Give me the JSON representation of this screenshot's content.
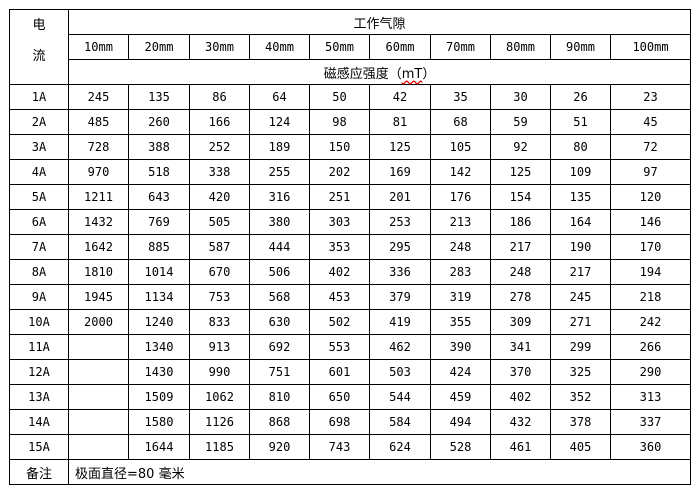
{
  "header": {
    "current_label_line1": "电",
    "current_label_line2": "流",
    "gap_title": "工作气隙",
    "gaps": [
      "10mm",
      "20mm",
      "30mm",
      "40mm",
      "50mm",
      "60mm",
      "70mm",
      "80mm",
      "90mm",
      "100mm"
    ],
    "field_title": "磁感应强度（",
    "field_unit": "mT",
    "field_close": "）"
  },
  "rows": [
    {
      "current": "1A",
      "values": [
        "245",
        "135",
        "86",
        "64",
        "50",
        "42",
        "35",
        "30",
        "26",
        "23"
      ]
    },
    {
      "current": "2A",
      "values": [
        "485",
        "260",
        "166",
        "124",
        "98",
        "81",
        "68",
        "59",
        "51",
        "45"
      ]
    },
    {
      "current": "3A",
      "values": [
        "728",
        "388",
        "252",
        "189",
        "150",
        "125",
        "105",
        "92",
        "80",
        "72"
      ]
    },
    {
      "current": "4A",
      "values": [
        "970",
        "518",
        "338",
        "255",
        "202",
        "169",
        "142",
        "125",
        "109",
        "97"
      ]
    },
    {
      "current": "5A",
      "values": [
        "1211",
        "643",
        "420",
        "316",
        "251",
        "201",
        "176",
        "154",
        "135",
        "120"
      ]
    },
    {
      "current": "6A",
      "values": [
        "1432",
        "769",
        "505",
        "380",
        "303",
        "253",
        "213",
        "186",
        "164",
        "146"
      ]
    },
    {
      "current": "7A",
      "values": [
        "1642",
        "885",
        "587",
        "444",
        "353",
        "295",
        "248",
        "217",
        "190",
        "170"
      ]
    },
    {
      "current": "8A",
      "values": [
        "1810",
        "1014",
        "670",
        "506",
        "402",
        "336",
        "283",
        "248",
        "217",
        "194"
      ]
    },
    {
      "current": "9A",
      "values": [
        "1945",
        "1134",
        "753",
        "568",
        "453",
        "379",
        "319",
        "278",
        "245",
        "218"
      ]
    },
    {
      "current": "10A",
      "values": [
        "2000",
        "1240",
        "833",
        "630",
        "502",
        "419",
        "355",
        "309",
        "271",
        "242"
      ]
    },
    {
      "current": "11A",
      "values": [
        "",
        "1340",
        "913",
        "692",
        "553",
        "462",
        "390",
        "341",
        "299",
        "266"
      ]
    },
    {
      "current": "12A",
      "values": [
        "",
        "1430",
        "990",
        "751",
        "601",
        "503",
        "424",
        "370",
        "325",
        "290"
      ]
    },
    {
      "current": "13A",
      "values": [
        "",
        "1509",
        "1062",
        "810",
        "650",
        "544",
        "459",
        "402",
        "352",
        "313"
      ]
    },
    {
      "current": "14A",
      "values": [
        "",
        "1580",
        "1126",
        "868",
        "698",
        "584",
        "494",
        "432",
        "378",
        "337"
      ]
    },
    {
      "current": "15A",
      "values": [
        "",
        "1644",
        "1185",
        "920",
        "743",
        "624",
        "528",
        "461",
        "405",
        "360"
      ]
    }
  ],
  "note": {
    "label": "备注",
    "text": "极面直径=80 毫米"
  }
}
